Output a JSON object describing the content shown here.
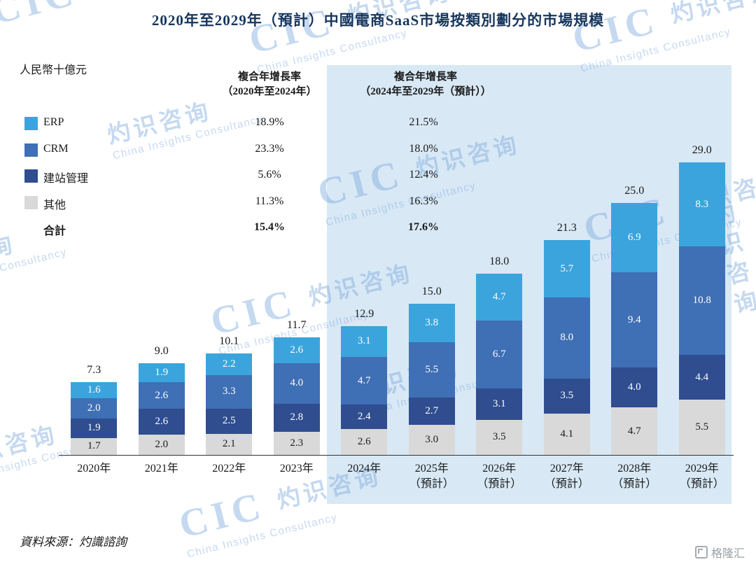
{
  "title": "2020年至2029年（預計）中國電商SaaS市場按類別劃分的市場規模",
  "unit_label": "人民幣十億元",
  "cagr_columns": [
    {
      "line1": "複合年增長率",
      "line2": "（2020年至2024年）"
    },
    {
      "line1": "複合年增長率",
      "line2": "（2024年至2029年（預計））"
    }
  ],
  "legend_rows": [
    {
      "label": "ERP",
      "swatch": "#3BA4DC",
      "cagr_2020_2024": "18.9%",
      "cagr_2024_2029": "21.5%",
      "bold": false
    },
    {
      "label": "CRM",
      "swatch": "#3F6FB5",
      "cagr_2020_2024": "23.3%",
      "cagr_2024_2029": "18.0%",
      "bold": false
    },
    {
      "label": "建站管理",
      "swatch": "#2F4D8F",
      "cagr_2020_2024": "5.6%",
      "cagr_2024_2029": "12.4%",
      "bold": false
    },
    {
      "label": "其他",
      "swatch": "#D9D9D9",
      "cagr_2020_2024": "11.3%",
      "cagr_2024_2029": "16.3%",
      "bold": false
    },
    {
      "label": "合計",
      "swatch": null,
      "cagr_2020_2024": "15.4%",
      "cagr_2024_2029": "17.6%",
      "bold": true
    }
  ],
  "chart_data": {
    "type": "bar",
    "stacked": true,
    "title": "2020年至2029年（預計）中國電商SaaS市場按類別劃分的市場規模",
    "ylabel": "人民幣十億元",
    "ylim": [
      0,
      30
    ],
    "categories": [
      "2020年",
      "2021年",
      "2022年",
      "2023年",
      "2024年",
      "2025年",
      "2026年",
      "2027年",
      "2028年",
      "2029年"
    ],
    "forecast_suffix": "（預計）",
    "suffix_category_indexes": [
      5,
      6,
      7,
      8,
      9
    ],
    "forecast_region_start_index": 4,
    "series": [
      {
        "name": "其他",
        "color": "#D9D9D9",
        "label_color": "#1A1A1A",
        "values": [
          1.7,
          2.0,
          2.1,
          2.3,
          2.6,
          3.0,
          3.5,
          4.1,
          4.7,
          5.5
        ]
      },
      {
        "name": "建站管理",
        "color": "#2F4D8F",
        "label_color": "#FFFFFF",
        "values": [
          1.9,
          2.6,
          2.5,
          2.8,
          2.4,
          2.7,
          3.1,
          3.5,
          4.0,
          4.4
        ]
      },
      {
        "name": "CRM",
        "color": "#3F6FB5",
        "label_color": "#FFFFFF",
        "values": [
          2.0,
          2.6,
          3.3,
          4.0,
          4.7,
          5.5,
          6.7,
          8.0,
          9.4,
          10.8
        ]
      },
      {
        "name": "ERP",
        "color": "#3BA4DC",
        "label_color": "#FFFFFF",
        "values": [
          1.6,
          1.9,
          2.2,
          2.6,
          3.1,
          3.8,
          4.7,
          5.7,
          6.9,
          8.3
        ]
      }
    ],
    "totals": [
      7.3,
      9.0,
      10.1,
      11.7,
      12.9,
      15.0,
      18.0,
      21.3,
      25.0,
      29.0
    ],
    "legend_position": "left",
    "grid": false
  },
  "source": "資料來源：灼識諮詢",
  "watermark": {
    "logo": "CIC",
    "cn": "灼识咨询",
    "en": "China Insights Consultancy"
  },
  "footer_logo_text": "格隆汇",
  "colors": {
    "forecast_bg": "#D8E8F5",
    "title_text": "#17365D"
  }
}
